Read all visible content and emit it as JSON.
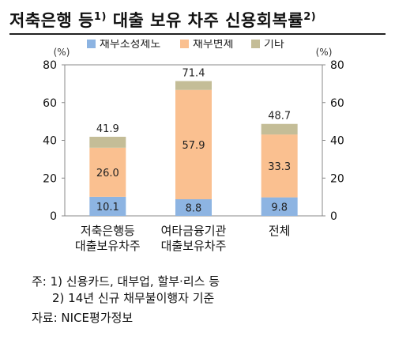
{
  "title": {
    "text": "저축은행 등",
    "sup1": "1)",
    "text2": " 대출 보유 차주 신용회복률",
    "sup2": "2)"
  },
  "notes": {
    "line1": "주: 1) 신용카드, 대부업, 할부·리스 등",
    "line2": "2) 14년 신규 채무불이행자 기준"
  },
  "source": "자료: NICE평가정보",
  "chart_data": {
    "type": "bar",
    "stacked": true,
    "unit_left": "(%)",
    "unit_right": "(%)",
    "ylim": [
      0,
      80
    ],
    "yticks": [
      0,
      20,
      40,
      60,
      80
    ],
    "grid": false,
    "legend_position": "top",
    "categories": [
      [
        "저축은행등",
        "대출보유차주"
      ],
      [
        "여타금융기관",
        "대출보유차주"
      ],
      [
        "전체"
      ]
    ],
    "series": [
      {
        "name": "채무조정제도",
        "color": "#8db4e2",
        "values": [
          10.1,
          8.8,
          9.8
        ]
      },
      {
        "name": "채무변제",
        "color": "#fac090",
        "values": [
          26.0,
          57.9,
          33.3
        ]
      },
      {
        "name": "기타",
        "color": "#c4bd97",
        "values": [
          5.8,
          4.7,
          5.6
        ]
      }
    ],
    "totals": [
      41.9,
      71.4,
      48.7
    ],
    "labels": [
      [
        "10.1",
        "8.8",
        "9.8"
      ],
      [
        "26.0",
        "57.9",
        "33.3"
      ]
    ]
  }
}
